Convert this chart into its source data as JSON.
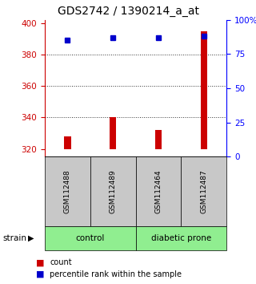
{
  "title": "GDS2742 / 1390214_a_at",
  "samples": [
    "GSM112488",
    "GSM112489",
    "GSM112464",
    "GSM112487"
  ],
  "red_values": [
    328,
    340,
    332,
    395
  ],
  "blue_percentiles": [
    85,
    87,
    87,
    88
  ],
  "red_baseline": 320,
  "ylim_left": [
    315,
    402
  ],
  "ylim_right": [
    0,
    100
  ],
  "yticks_left": [
    320,
    340,
    360,
    380,
    400
  ],
  "yticks_right": [
    0,
    25,
    50,
    75,
    100
  ],
  "ytick_labels_right": [
    "0",
    "25",
    "50",
    "75",
    "100%"
  ],
  "groups": [
    {
      "label": "control",
      "indices": [
        0,
        1
      ],
      "color": "#90EE90"
    },
    {
      "label": "diabetic prone",
      "indices": [
        2,
        3
      ],
      "color": "#90EE90"
    }
  ],
  "bar_width": 0.15,
  "red_color": "#CC0000",
  "blue_color": "#0000CC",
  "bg_color": "#ffffff",
  "plot_bg": "#ffffff",
  "grid_color": "#333333",
  "sample_box_color": "#C8C8C8",
  "legend_red_label": "count",
  "legend_blue_label": "percentile rank within the sample",
  "strain_label": "strain",
  "title_fontsize": 10,
  "tick_fontsize": 7.5
}
